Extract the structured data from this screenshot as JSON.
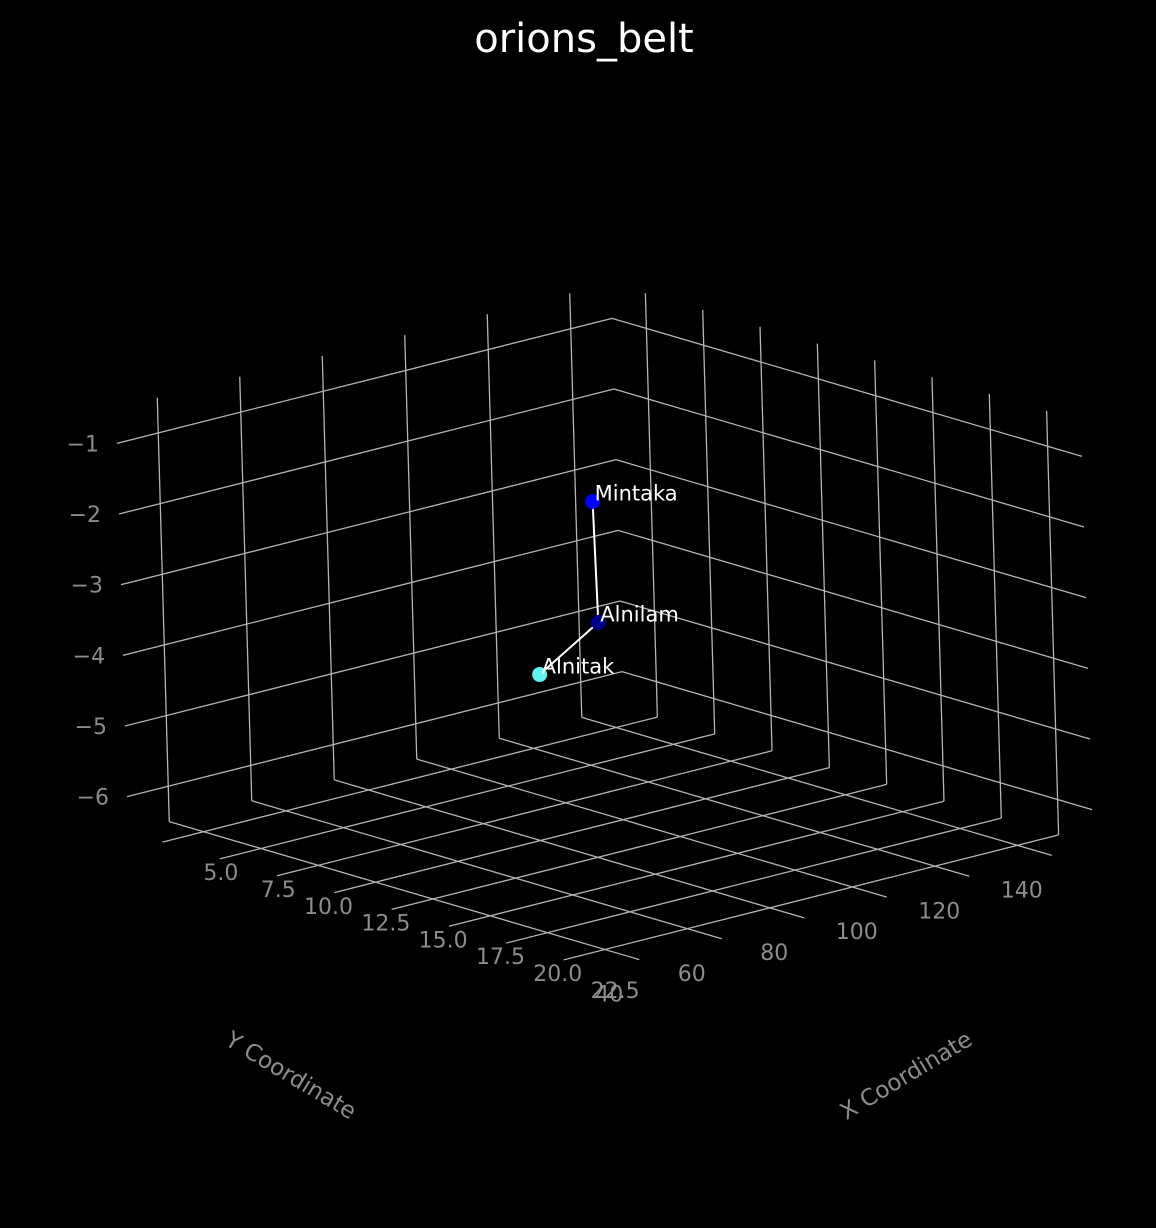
{
  "chart_data": {
    "type": "scatter",
    "projection": "3d",
    "title": "orions_belt",
    "xlabel": "X Coordinate",
    "ylabel": "Y Coordinate",
    "zlabel": "",
    "xlim": [
      3.5,
      24.0
    ],
    "ylim": [
      30,
      150
    ],
    "zlim": [
      -6.5,
      -0.5
    ],
    "x_ticks": [
      "5.0",
      "7.5",
      "10.0",
      "12.5",
      "15.0",
      "17.5",
      "20.0",
      "22.5"
    ],
    "y_ticks": [
      "40",
      "60",
      "80",
      "100",
      "120",
      "140"
    ],
    "z_ticks": [
      "−6",
      "−5",
      "−4",
      "−3",
      "−2",
      "−1"
    ],
    "grid": true,
    "background": "#000000",
    "connecting_line_color": "#ffffff",
    "points": [
      {
        "name": "Mintaka",
        "x": 13.2,
        "y": 91,
        "z": -1.8,
        "color": "#0000ff"
      },
      {
        "name": "Alnilam",
        "x": 13.3,
        "y": 91,
        "z": -3.5,
        "color": "#00008b"
      },
      {
        "name": "Alnitak",
        "x": 12.3,
        "y": 82,
        "z": -4.2,
        "color": "#5ff2ee"
      }
    ]
  }
}
